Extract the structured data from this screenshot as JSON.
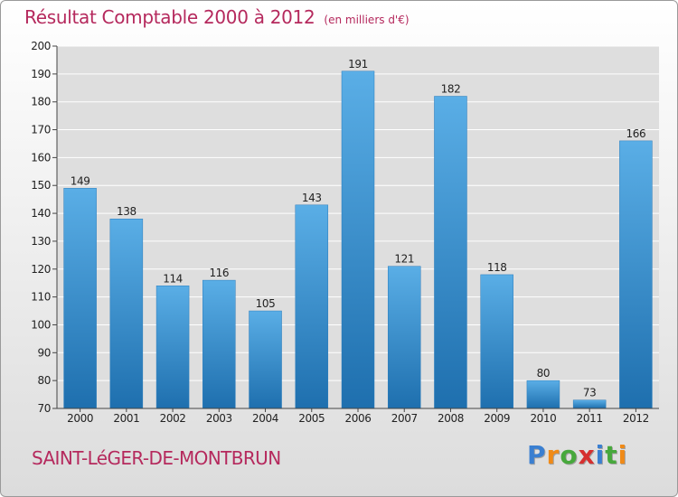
{
  "title": "Résultat Comptable 2000 à 2012",
  "subtitle": "(en milliers d'€)",
  "commune": "SAINT-LéGER-DE-MONTBRUN",
  "logo": {
    "text": "Proxiti",
    "letter_colors": [
      "#3a7fd1",
      "#f08a17",
      "#47a83c",
      "#d62f2f",
      "#3a7fd1",
      "#47a83c",
      "#f08a17"
    ]
  },
  "colors": {
    "bar_top": "#5aaee6",
    "bar_bottom": "#1e6fae",
    "title": "#b5295d",
    "gridline": "#ffffff"
  },
  "chart_data": {
    "type": "bar",
    "categories": [
      "2000",
      "2001",
      "2002",
      "2003",
      "2004",
      "2005",
      "2006",
      "2007",
      "2008",
      "2009",
      "2010",
      "2011",
      "2012"
    ],
    "values": [
      149,
      138,
      114,
      116,
      105,
      143,
      191,
      121,
      182,
      118,
      80,
      73,
      166
    ],
    "title": "Résultat Comptable 2000 à 2012",
    "subtitle": "(en milliers d'€)",
    "ylim": [
      70,
      200
    ],
    "yticks": [
      70,
      80,
      90,
      100,
      110,
      120,
      130,
      140,
      150,
      160,
      170,
      180,
      190,
      200
    ],
    "grid": true,
    "data_labels": true
  }
}
